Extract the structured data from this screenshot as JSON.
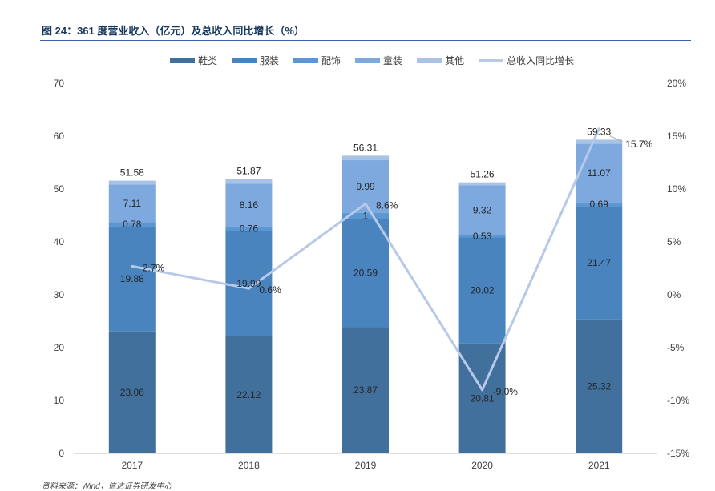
{
  "chart_data": {
    "type": "bar",
    "stacked": true,
    "title": "图 24：361 度营业收入（亿元）及总收入同比增长（%）",
    "categories": [
      "2017",
      "2018",
      "2019",
      "2020",
      "2021"
    ],
    "series": [
      {
        "name": "鞋类",
        "type": "bar",
        "color": "#41709C",
        "values": [
          23.06,
          22.12,
          23.87,
          20.81,
          25.32
        ],
        "labels": [
          "23.06",
          "22.12",
          "23.87",
          "20.81",
          "25.32"
        ]
      },
      {
        "name": "服装",
        "type": "bar",
        "color": "#4A84BF",
        "values": [
          19.88,
          19.99,
          20.59,
          20.02,
          21.47
        ],
        "labels": [
          "19.88",
          "19.99",
          "20.59",
          "20.02",
          "21.47"
        ]
      },
      {
        "name": "配饰",
        "type": "bar",
        "color": "#5B97D3",
        "values": [
          0.78,
          0.76,
          1,
          0.53,
          0.69
        ],
        "labels": [
          "0.78",
          "0.76",
          "1",
          "0.53",
          "0.69"
        ]
      },
      {
        "name": "童装",
        "type": "bar",
        "color": "#7DA9DE",
        "values": [
          7.11,
          8.16,
          9.99,
          9.32,
          11.07
        ],
        "labels": [
          "7.11",
          "8.16",
          "9.99",
          "9.32",
          "11.07"
        ]
      },
      {
        "name": "其他",
        "type": "bar",
        "color": "#A9C3E6",
        "values": [
          0.75,
          0.84,
          0.86,
          0.58,
          0.78
        ]
      },
      {
        "name": "总收入同比增长",
        "type": "line",
        "color": "#B7C9E6",
        "values": [
          2.7,
          0.6,
          8.6,
          -9.0,
          15.7
        ],
        "labels": [
          "2.7%",
          "0.6%",
          "8.6%",
          "-9.0%",
          "15.7%"
        ]
      }
    ],
    "totals": {
      "values": [
        51.58,
        51.87,
        56.31,
        51.26,
        59.33
      ],
      "labels": [
        "51.58",
        "51.87",
        "56.31",
        "51.26",
        "59.33"
      ]
    },
    "ylim": [
      0,
      70
    ],
    "yticks": [
      "0",
      "10",
      "20",
      "30",
      "40",
      "50",
      "60",
      "70"
    ],
    "y2lim": [
      -15,
      20
    ],
    "y2ticks": [
      "-15%",
      "-10%",
      "-5%",
      "0%",
      "5%",
      "10%",
      "15%",
      "20%"
    ],
    "grid": false,
    "legend": "top"
  },
  "source_note": "资料来源：Wind，信达证券研发中心"
}
